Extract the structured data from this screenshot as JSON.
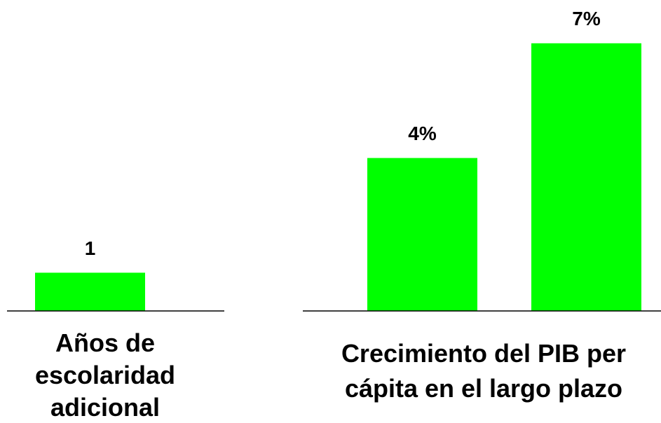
{
  "chart_data": [
    {
      "type": "bar",
      "x_label": "Años de escolaridad adicional",
      "values": [
        1
      ],
      "value_labels": [
        "1"
      ],
      "color": "#00ff00"
    },
    {
      "type": "bar",
      "x_label": "Crecimiento del PIB per cápita en el largo plazo",
      "values": [
        4,
        7
      ],
      "value_labels": [
        "4%",
        "7%"
      ],
      "color": "#00ff00"
    }
  ]
}
